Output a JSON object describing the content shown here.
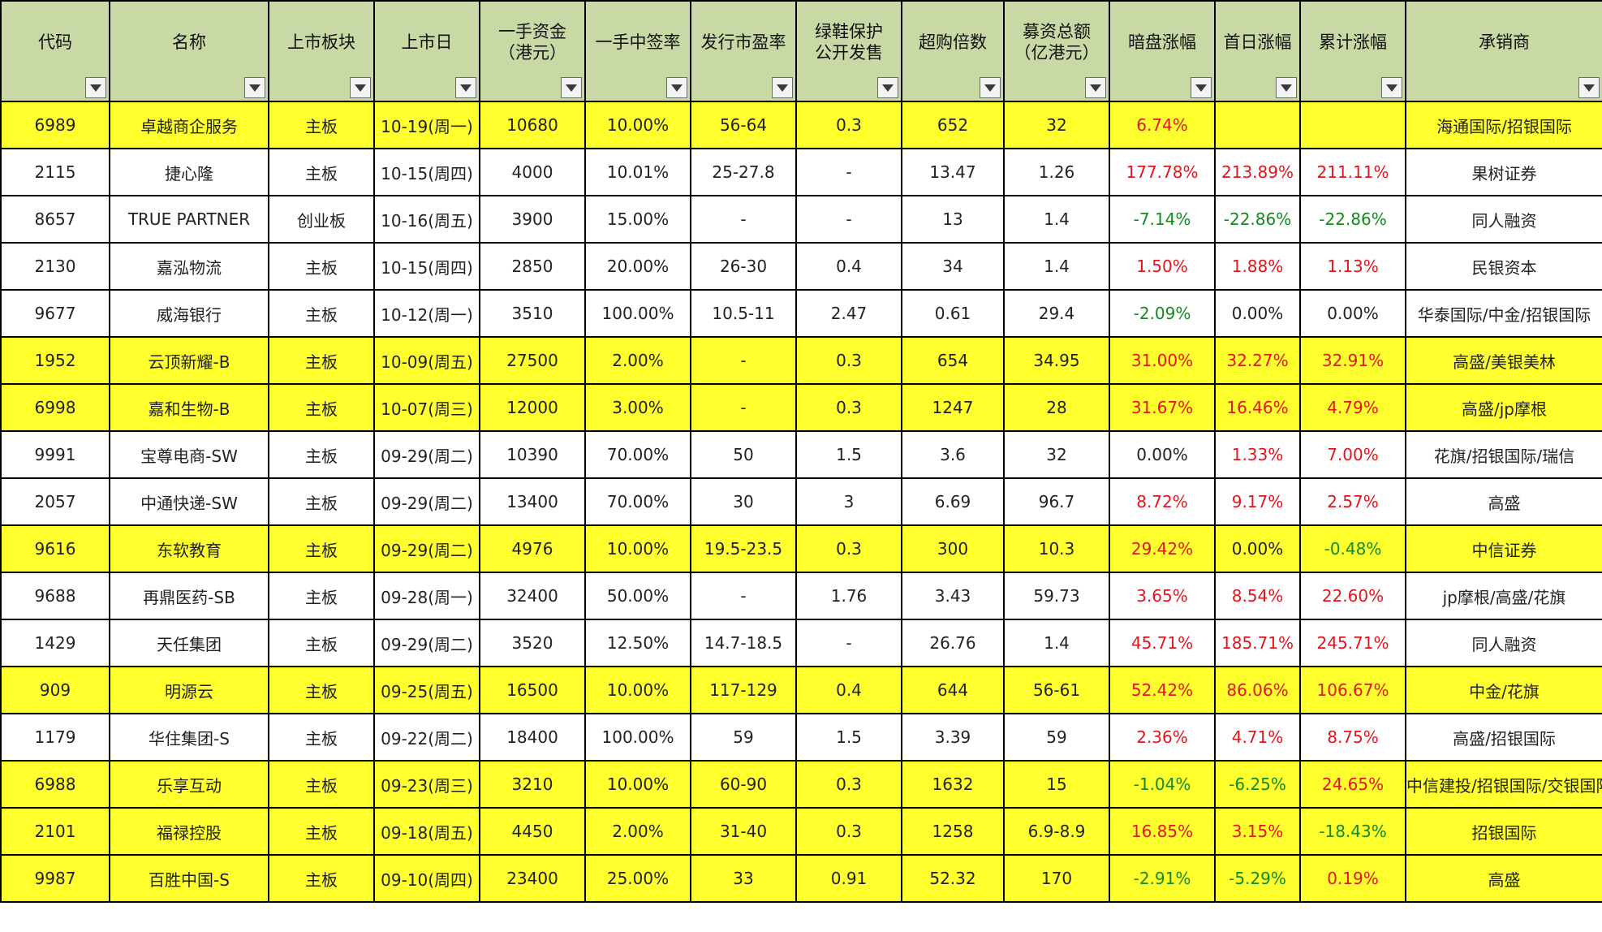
{
  "colors": {
    "header_bg": "#c8d9a5",
    "highlight_row": "#ffff2e",
    "positive": "#e3141c",
    "negative": "#128a1f"
  },
  "columns": [
    {
      "key": "code",
      "label": "代码"
    },
    {
      "key": "name",
      "label": "名称"
    },
    {
      "key": "board",
      "label": "上市板块"
    },
    {
      "key": "date",
      "label": "上市日"
    },
    {
      "key": "lot_capital",
      "label": "一手资金\n（港元）"
    },
    {
      "key": "win_rate",
      "label": "一手中签率"
    },
    {
      "key": "pe",
      "label": "发行市盈率"
    },
    {
      "key": "greenshoe",
      "label": "绿鞋保护\n公开发售"
    },
    {
      "key": "oversub",
      "label": "超购倍数"
    },
    {
      "key": "raised",
      "label": "募资总额\n（亿港元）"
    },
    {
      "key": "grey",
      "label": "暗盘涨幅"
    },
    {
      "key": "first_day",
      "label": "首日涨幅"
    },
    {
      "key": "cumulative",
      "label": "累计涨幅"
    },
    {
      "key": "underwriter",
      "label": "承销商"
    }
  ],
  "rows": [
    {
      "highlight": true,
      "code": "6989",
      "name": "卓越商企服务",
      "board": "主板",
      "date": "10-19(周一)",
      "lot_capital": "10680",
      "win_rate": "10.00%",
      "pe": "56-64",
      "greenshoe": "0.3",
      "oversub": "652",
      "raised": "32",
      "grey": "6.74%",
      "first_day": "",
      "cumulative": "",
      "underwriter": "海通国际/招银国际"
    },
    {
      "highlight": false,
      "code": "2115",
      "name": "捷心隆",
      "board": "主板",
      "date": "10-15(周四)",
      "lot_capital": "4000",
      "win_rate": "10.01%",
      "pe": "25-27.8",
      "greenshoe": "-",
      "oversub": "13.47",
      "raised": "1.26",
      "grey": "177.78%",
      "first_day": "213.89%",
      "cumulative": "211.11%",
      "underwriter": "果树证券"
    },
    {
      "highlight": false,
      "code": "8657",
      "name": "TRUE PARTNER",
      "board": "创业板",
      "date": "10-16(周五)",
      "lot_capital": "3900",
      "win_rate": "15.00%",
      "pe": "-",
      "greenshoe": "-",
      "oversub": "13",
      "raised": "1.4",
      "grey": "-7.14%",
      "first_day": "-22.86%",
      "cumulative": "-22.86%",
      "underwriter": "同人融资"
    },
    {
      "highlight": false,
      "code": "2130",
      "name": "嘉泓物流",
      "board": "主板",
      "date": "10-15(周四)",
      "lot_capital": "2850",
      "win_rate": "20.00%",
      "pe": "26-30",
      "greenshoe": "0.4",
      "oversub": "34",
      "raised": "1.4",
      "grey": "1.50%",
      "first_day": "1.88%",
      "cumulative": "1.13%",
      "underwriter": "民银资本"
    },
    {
      "highlight": false,
      "code": "9677",
      "name": "威海银行",
      "board": "主板",
      "date": "10-12(周一)",
      "lot_capital": "3510",
      "win_rate": "100.00%",
      "pe": "10.5-11",
      "greenshoe": "2.47",
      "oversub": "0.61",
      "raised": "29.4",
      "grey": "-2.09%",
      "first_day": "0.00%",
      "cumulative": "0.00%",
      "underwriter": "华泰国际/中金/招银国际"
    },
    {
      "highlight": true,
      "code": "1952",
      "name": "云顶新耀-B",
      "board": "主板",
      "date": "10-09(周五)",
      "lot_capital": "27500",
      "win_rate": "2.00%",
      "pe": "-",
      "greenshoe": "0.3",
      "oversub": "654",
      "raised": "34.95",
      "grey": "31.00%",
      "first_day": "32.27%",
      "cumulative": "32.91%",
      "underwriter": "高盛/美银美林"
    },
    {
      "highlight": true,
      "code": "6998",
      "name": "嘉和生物-B",
      "board": "主板",
      "date": "10-07(周三)",
      "lot_capital": "12000",
      "win_rate": "3.00%",
      "pe": "-",
      "greenshoe": "0.3",
      "oversub": "1247",
      "raised": "28",
      "grey": "31.67%",
      "first_day": "16.46%",
      "cumulative": "4.79%",
      "underwriter": "高盛/jp摩根"
    },
    {
      "highlight": false,
      "code": "9991",
      "name": "宝尊电商-SW",
      "board": "主板",
      "date": "09-29(周二)",
      "lot_capital": "10390",
      "win_rate": "70.00%",
      "pe": "50",
      "greenshoe": "1.5",
      "oversub": "3.6",
      "raised": "32",
      "grey": "0.00%",
      "first_day": "1.33%",
      "cumulative": "7.00%",
      "underwriter": "花旗/招银国际/瑞信"
    },
    {
      "highlight": false,
      "code": "2057",
      "name": "中通快递-SW",
      "board": "主板",
      "date": "09-29(周二)",
      "lot_capital": "13400",
      "win_rate": "70.00%",
      "pe": "30",
      "greenshoe": "3",
      "oversub": "6.69",
      "raised": "96.7",
      "grey": "8.72%",
      "first_day": "9.17%",
      "cumulative": "2.57%",
      "underwriter": "高盛"
    },
    {
      "highlight": true,
      "code": "9616",
      "name": "东软教育",
      "board": "主板",
      "date": "09-29(周二)",
      "lot_capital": "4976",
      "win_rate": "10.00%",
      "pe": "19.5-23.5",
      "greenshoe": "0.3",
      "oversub": "300",
      "raised": "10.3",
      "grey": "29.42%",
      "first_day": "0.00%",
      "cumulative": "-0.48%",
      "underwriter": "中信证券"
    },
    {
      "highlight": false,
      "code": "9688",
      "name": "再鼎医药-SB",
      "board": "主板",
      "date": "09-28(周一)",
      "lot_capital": "32400",
      "win_rate": "50.00%",
      "pe": "-",
      "greenshoe": "1.76",
      "oversub": "3.43",
      "raised": "59.73",
      "grey": "3.65%",
      "first_day": "8.54%",
      "cumulative": "22.60%",
      "underwriter": "jp摩根/高盛/花旗"
    },
    {
      "highlight": false,
      "code": "1429",
      "name": "天任集团",
      "board": "主板",
      "date": "09-29(周二)",
      "lot_capital": "3520",
      "win_rate": "12.50%",
      "pe": "14.7-18.5",
      "greenshoe": "-",
      "oversub": "26.76",
      "raised": "1.4",
      "grey": "45.71%",
      "first_day": "185.71%",
      "cumulative": "245.71%",
      "underwriter": "同人融资"
    },
    {
      "highlight": true,
      "code": "909",
      "name": "明源云",
      "board": "主板",
      "date": "09-25(周五)",
      "lot_capital": "16500",
      "win_rate": "10.00%",
      "pe": "117-129",
      "greenshoe": "0.4",
      "oversub": "644",
      "raised": "56-61",
      "grey": "52.42%",
      "first_day": "86.06%",
      "cumulative": "106.67%",
      "underwriter": "中金/花旗"
    },
    {
      "highlight": false,
      "code": "1179",
      "name": "华住集团-S",
      "board": "主板",
      "date": "09-22(周二)",
      "lot_capital": "18400",
      "win_rate": "100.00%",
      "pe": "59",
      "greenshoe": "1.5",
      "oversub": "3.39",
      "raised": "59",
      "grey": "2.36%",
      "first_day": "4.71%",
      "cumulative": "8.75%",
      "underwriter": "高盛/招银国际"
    },
    {
      "highlight": true,
      "code": "6988",
      "name": "乐享互动",
      "board": "主板",
      "date": "09-23(周三)",
      "lot_capital": "3210",
      "win_rate": "10.00%",
      "pe": "60-90",
      "greenshoe": "0.3",
      "oversub": "1632",
      "raised": "15",
      "grey": "-1.04%",
      "first_day": "-6.25%",
      "cumulative": "24.65%",
      "underwriter": "中信建投/招银国际/交银国际"
    },
    {
      "highlight": true,
      "code": "2101",
      "name": "福禄控股",
      "board": "主板",
      "date": "09-18(周五)",
      "lot_capital": "4450",
      "win_rate": "2.00%",
      "pe": "31-40",
      "greenshoe": "0.3",
      "oversub": "1258",
      "raised": "6.9-8.9",
      "grey": "16.85%",
      "first_day": "3.15%",
      "cumulative": "-18.43%",
      "underwriter": "招银国际"
    },
    {
      "highlight": true,
      "code": "9987",
      "name": "百胜中国-S",
      "board": "主板",
      "date": "09-10(周四)",
      "lot_capital": "23400",
      "win_rate": "25.00%",
      "pe": "33",
      "greenshoe": "0.91",
      "oversub": "52.32",
      "raised": "170",
      "grey": "-2.91%",
      "first_day": "-5.29%",
      "cumulative": "0.19%",
      "underwriter": "高盛"
    }
  ]
}
